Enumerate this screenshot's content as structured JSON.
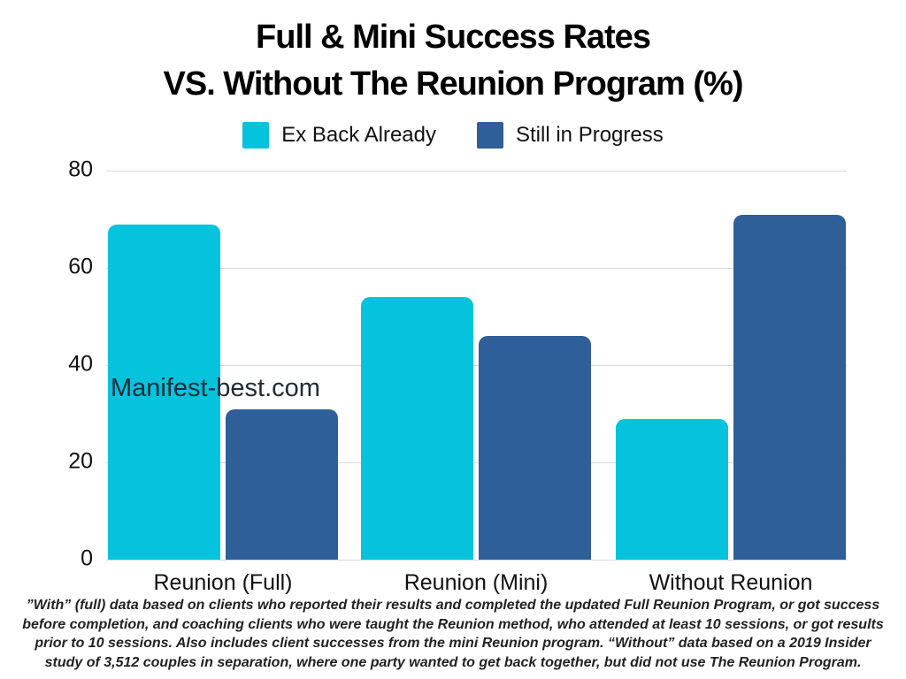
{
  "title": {
    "line1": "Full & Mini Success Rates",
    "line2": "VS. Without The Reunion Program (%)"
  },
  "legend": {
    "items": [
      {
        "label": "Ex Back Already",
        "color": "#05c3dc"
      },
      {
        "label": "Still in Progress",
        "color": "#2e5f99"
      }
    ]
  },
  "watermark": {
    "text": "Manifest-best.com"
  },
  "footnote": {
    "lines": [
      "”With” (full) data based on clients who reported their results and completed the updated Full Reunion Program, or got success",
      "before completion, and coaching clients who were taught the Reunion method, who attended at least 10 sessions, or got results",
      "prior to 10 sessions. Also includes client successes from the mini Reunion program. “Without” data based on a 2019 Insider",
      "study of 3,512 couples in separation, where one party wanted to get back together, but did not use The Reunion Program."
    ]
  },
  "chart_data": {
    "type": "bar",
    "title": "Full & Mini Success Rates VS. Without The Reunion Program (%)",
    "categories": [
      "Reunion (Full)",
      "Reunion (Mini)",
      "Without Reunion"
    ],
    "series": [
      {
        "name": "Ex Back Already",
        "color": "#05c3dc",
        "values": [
          69,
          54,
          29
        ]
      },
      {
        "name": "Still in Progress",
        "color": "#2e5f99",
        "values": [
          31,
          46,
          71
        ]
      }
    ],
    "xlabel": "",
    "ylabel": "",
    "ylim": [
      0,
      80
    ],
    "yticks": [
      0,
      20,
      40,
      60,
      80
    ],
    "grid": true,
    "grid_color": "#d9d9d9",
    "legend_position": "top"
  }
}
